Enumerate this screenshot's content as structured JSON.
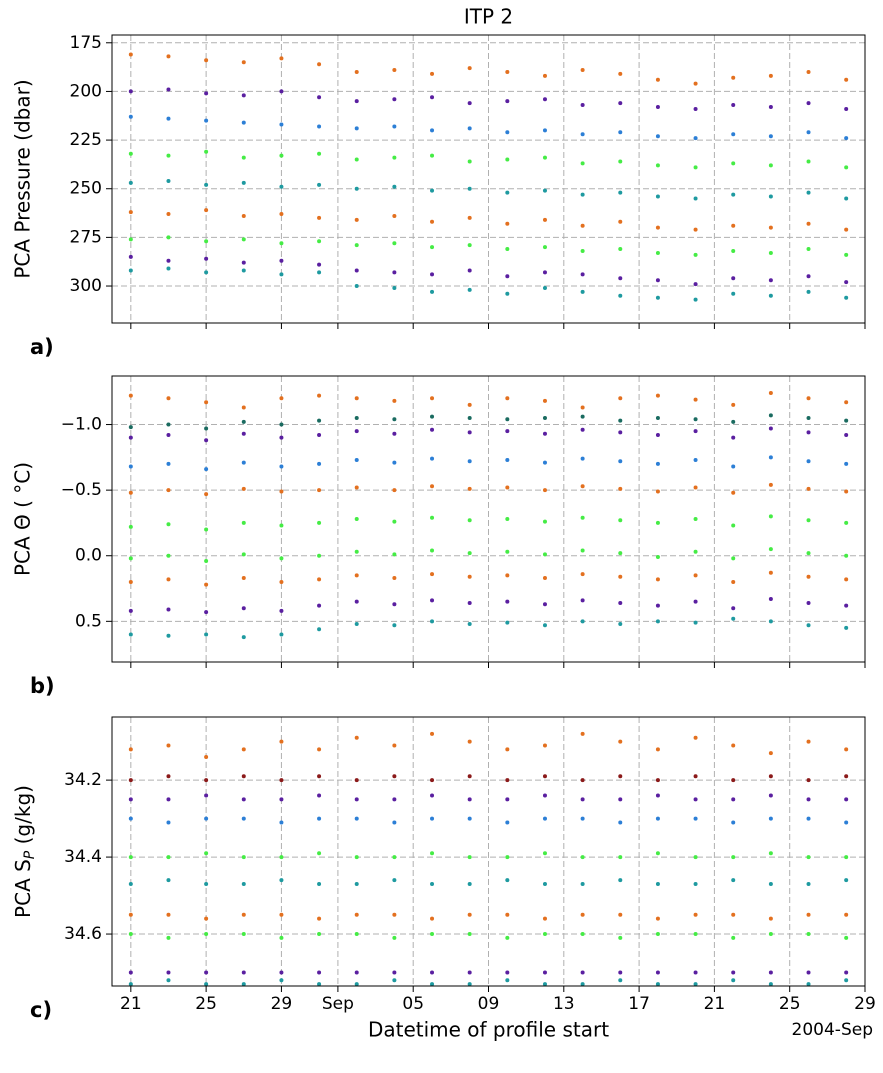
{
  "chart_data": [
    {
      "type": "scatter",
      "title": "ITP 2",
      "panel_label": "a)",
      "ylabel": "PCA Pressure (dbar)",
      "grid": true,
      "x": [
        "2004-08-21",
        "2004-08-23",
        "2004-08-25",
        "2004-08-27",
        "2004-08-29",
        "2004-08-31",
        "2004-09-02",
        "2004-09-04",
        "2004-09-06",
        "2004-09-08",
        "2004-09-10",
        "2004-09-12",
        "2004-09-14",
        "2004-09-16",
        "2004-09-18",
        "2004-09-20",
        "2004-09-22",
        "2004-09-24",
        "2004-09-26",
        "2004-09-28"
      ],
      "xlim": [
        "2004-08-20",
        "2004-09-29"
      ],
      "xticks": [
        "2004-08-21",
        "2004-08-25",
        "2004-08-29",
        "2004-09-01",
        "2004-09-05",
        "2004-09-09",
        "2004-09-13",
        "2004-09-17",
        "2004-09-21",
        "2004-09-25",
        "2004-09-29"
      ],
      "ylim": [
        319,
        171
      ],
      "yticks": [
        175,
        200,
        225,
        250,
        275,
        300
      ],
      "series": [
        {
          "color": "#e3701f",
          "values": [
            181,
            182,
            184,
            185,
            183,
            186,
            190,
            189,
            191,
            188,
            190,
            192,
            189,
            191,
            194,
            196,
            193,
            192,
            190,
            194
          ]
        },
        {
          "color": "#5a1fa0",
          "values": [
            200,
            199,
            201,
            202,
            200,
            203,
            205,
            204,
            203,
            206,
            205,
            204,
            207,
            206,
            208,
            209,
            207,
            208,
            206,
            209
          ]
        },
        {
          "color": "#2c7fd6",
          "values": [
            213,
            214,
            215,
            216,
            217,
            218,
            219,
            218,
            220,
            219,
            221,
            220,
            222,
            221,
            223,
            224,
            222,
            223,
            221,
            224
          ]
        },
        {
          "color": "#45ec45",
          "values": [
            232,
            233,
            231,
            234,
            233,
            232,
            235,
            234,
            233,
            236,
            235,
            234,
            237,
            236,
            238,
            239,
            237,
            238,
            236,
            239
          ]
        },
        {
          "color": "#1e9aa0",
          "values": [
            247,
            246,
            248,
            247,
            249,
            248,
            250,
            249,
            251,
            250,
            252,
            251,
            253,
            252,
            254,
            255,
            253,
            254,
            252,
            255
          ]
        },
        {
          "color": "#e3701f",
          "values": [
            262,
            263,
            261,
            264,
            263,
            265,
            266,
            264,
            267,
            265,
            268,
            266,
            269,
            267,
            270,
            271,
            269,
            270,
            268,
            271
          ]
        },
        {
          "color": "#45ec45",
          "values": [
            276,
            275,
            277,
            276,
            278,
            277,
            279,
            278,
            280,
            279,
            281,
            280,
            282,
            281,
            283,
            284,
            282,
            283,
            281,
            284
          ]
        },
        {
          "color": "#5a1fa0",
          "values": [
            285,
            287,
            286,
            288,
            287,
            289,
            292,
            293,
            294,
            292,
            295,
            293,
            294,
            296,
            297,
            299,
            296,
            297,
            295,
            298
          ]
        },
        {
          "color": "#1e9aa0",
          "values": [
            292,
            291,
            293,
            292,
            294,
            293,
            300,
            301,
            303,
            302,
            304,
            301,
            303,
            305,
            306,
            307,
            304,
            305,
            303,
            306
          ]
        }
      ]
    },
    {
      "type": "scatter",
      "panel_label": "b)",
      "ylabel": "PCA Θ ( °C)",
      "grid": true,
      "x": [
        "2004-08-21",
        "2004-08-23",
        "2004-08-25",
        "2004-08-27",
        "2004-08-29",
        "2004-08-31",
        "2004-09-02",
        "2004-09-04",
        "2004-09-06",
        "2004-09-08",
        "2004-09-10",
        "2004-09-12",
        "2004-09-14",
        "2004-09-16",
        "2004-09-18",
        "2004-09-20",
        "2004-09-22",
        "2004-09-24",
        "2004-09-26",
        "2004-09-28"
      ],
      "xlim": [
        "2004-08-20",
        "2004-09-29"
      ],
      "xticks": [
        "2004-08-21",
        "2004-08-25",
        "2004-08-29",
        "2004-09-01",
        "2004-09-05",
        "2004-09-09",
        "2004-09-13",
        "2004-09-17",
        "2004-09-21",
        "2004-09-25",
        "2004-09-29"
      ],
      "ylim": [
        0.81,
        -1.37
      ],
      "yticks": [
        {
          "value": -1.0,
          "label": "−1.0"
        },
        {
          "value": -0.5,
          "label": "−0.5"
        },
        {
          "value": 0.0,
          "label": "0.0"
        },
        0.5
      ],
      "series": [
        {
          "color": "#e3701f",
          "values": [
            -1.22,
            -1.2,
            -1.17,
            -1.13,
            -1.2,
            -1.22,
            -1.2,
            -1.18,
            -1.2,
            -1.15,
            -1.2,
            -1.18,
            -1.13,
            -1.2,
            -1.22,
            -1.19,
            -1.15,
            -1.24,
            -1.2,
            -1.17
          ]
        },
        {
          "color": "#1a6b60",
          "values": [
            -0.98,
            -1.0,
            -0.97,
            -1.02,
            -1.0,
            -1.03,
            -1.05,
            -1.04,
            -1.06,
            -1.05,
            -1.04,
            -1.05,
            -1.06,
            -1.03,
            -1.05,
            -1.04,
            -1.02,
            -1.07,
            -1.05,
            -1.03
          ]
        },
        {
          "color": "#5a1fa0",
          "values": [
            -0.9,
            -0.92,
            -0.88,
            -0.93,
            -0.9,
            -0.92,
            -0.95,
            -0.93,
            -0.96,
            -0.94,
            -0.95,
            -0.93,
            -0.96,
            -0.94,
            -0.92,
            -0.95,
            -0.9,
            -0.97,
            -0.94,
            -0.92
          ]
        },
        {
          "color": "#2c7fd6",
          "values": [
            -0.68,
            -0.7,
            -0.66,
            -0.71,
            -0.68,
            -0.7,
            -0.73,
            -0.71,
            -0.74,
            -0.72,
            -0.73,
            -0.71,
            -0.74,
            -0.72,
            -0.7,
            -0.73,
            -0.68,
            -0.75,
            -0.72,
            -0.7
          ]
        },
        {
          "color": "#e3701f",
          "values": [
            -0.48,
            -0.5,
            -0.47,
            -0.51,
            -0.49,
            -0.5,
            -0.52,
            -0.5,
            -0.53,
            -0.51,
            -0.52,
            -0.5,
            -0.53,
            -0.51,
            -0.49,
            -0.52,
            -0.48,
            -0.54,
            -0.51,
            -0.49
          ]
        },
        {
          "color": "#45ec45",
          "values": [
            -0.22,
            -0.24,
            -0.2,
            -0.25,
            -0.23,
            -0.25,
            -0.28,
            -0.26,
            -0.29,
            -0.27,
            -0.28,
            -0.26,
            -0.29,
            -0.27,
            -0.25,
            -0.28,
            -0.23,
            -0.3,
            -0.27,
            -0.25
          ]
        },
        {
          "color": "#45ec45",
          "values": [
            0.02,
            0,
            0.04,
            -0.01,
            0.02,
            0,
            -0.03,
            -0.01,
            -0.04,
            -0.02,
            -0.03,
            -0.01,
            -0.04,
            -0.02,
            0.01,
            -0.03,
            0.02,
            -0.05,
            -0.02,
            0
          ]
        },
        {
          "color": "#e3701f",
          "values": [
            0.2,
            0.18,
            0.22,
            0.17,
            0.2,
            0.18,
            0.15,
            0.17,
            0.14,
            0.16,
            0.15,
            0.17,
            0.14,
            0.16,
            0.18,
            0.15,
            0.2,
            0.13,
            0.16,
            0.18
          ]
        },
        {
          "color": "#5a1fa0",
          "values": [
            0.42,
            0.41,
            0.43,
            0.4,
            0.42,
            0.38,
            0.35,
            0.37,
            0.34,
            0.36,
            0.35,
            0.37,
            0.34,
            0.36,
            0.38,
            0.35,
            0.4,
            0.33,
            0.36,
            0.38
          ]
        },
        {
          "color": "#1e9aa0",
          "values": [
            0.6,
            0.61,
            0.6,
            0.62,
            0.6,
            0.56,
            0.52,
            0.53,
            0.5,
            0.52,
            0.51,
            0.53,
            0.5,
            0.52,
            0.5,
            0.51,
            0.48,
            0.5,
            0.53,
            0.55
          ]
        }
      ]
    },
    {
      "type": "scatter",
      "panel_label": "c)",
      "ylabel": [
        "PCA S",
        "P",
        " (g/kg)"
      ],
      "xlabel": "Datetime of profile start",
      "x_offset_label": "2004-Sep",
      "grid": true,
      "x": [
        "2004-08-21",
        "2004-08-23",
        "2004-08-25",
        "2004-08-27",
        "2004-08-29",
        "2004-08-31",
        "2004-09-02",
        "2004-09-04",
        "2004-09-06",
        "2004-09-08",
        "2004-09-10",
        "2004-09-12",
        "2004-09-14",
        "2004-09-16",
        "2004-09-18",
        "2004-09-20",
        "2004-09-22",
        "2004-09-24",
        "2004-09-26",
        "2004-09-28"
      ],
      "xlim": [
        "2004-08-20",
        "2004-09-29"
      ],
      "xticks": [
        {
          "value": "2004-08-21",
          "label": "21"
        },
        {
          "value": "2004-08-25",
          "label": "25"
        },
        {
          "value": "2004-08-29",
          "label": "29"
        },
        {
          "value": "2004-09-01",
          "label": "Sep"
        },
        {
          "value": "2004-09-05",
          "label": "05"
        },
        {
          "value": "2004-09-09",
          "label": "09"
        },
        {
          "value": "2004-09-13",
          "label": "13"
        },
        {
          "value": "2004-09-17",
          "label": "17"
        },
        {
          "value": "2004-09-21",
          "label": "21"
        },
        {
          "value": "2004-09-25",
          "label": "25"
        },
        {
          "value": "2004-09-29",
          "label": "29"
        }
      ],
      "ylim": [
        34.735,
        34.036
      ],
      "yticks": [
        34.2,
        34.4,
        34.6
      ],
      "series": [
        {
          "color": "#e3701f",
          "values": [
            34.12,
            34.11,
            34.14,
            34.12,
            34.1,
            34.12,
            34.09,
            34.11,
            34.08,
            34.1,
            34.12,
            34.11,
            34.08,
            34.1,
            34.12,
            34.09,
            34.11,
            34.13,
            34.1,
            34.12
          ]
        },
        {
          "color": "#8b1a1a",
          "values": [
            34.2,
            34.19,
            34.2,
            34.19,
            34.2,
            34.19,
            34.2,
            34.19,
            34.2,
            34.19,
            34.2,
            34.19,
            34.2,
            34.19,
            34.2,
            34.19,
            34.2,
            34.19,
            34.2,
            34.19
          ]
        },
        {
          "color": "#5a1fa0",
          "values": [
            34.25,
            34.25,
            34.24,
            34.25,
            34.25,
            34.24,
            34.25,
            34.25,
            34.24,
            34.25,
            34.25,
            34.24,
            34.25,
            34.25,
            34.24,
            34.25,
            34.25,
            34.24,
            34.25,
            34.25
          ]
        },
        {
          "color": "#2c7fd6",
          "values": [
            34.3,
            34.31,
            34.3,
            34.3,
            34.31,
            34.3,
            34.3,
            34.31,
            34.3,
            34.3,
            34.31,
            34.3,
            34.3,
            34.31,
            34.3,
            34.3,
            34.31,
            34.3,
            34.3,
            34.31
          ]
        },
        {
          "color": "#45ec45",
          "values": [
            34.4,
            34.4,
            34.39,
            34.4,
            34.4,
            34.39,
            34.4,
            34.4,
            34.39,
            34.4,
            34.4,
            34.39,
            34.4,
            34.4,
            34.39,
            34.4,
            34.4,
            34.39,
            34.4,
            34.4
          ]
        },
        {
          "color": "#1e9aa0",
          "values": [
            34.47,
            34.46,
            34.47,
            34.47,
            34.46,
            34.47,
            34.47,
            34.46,
            34.47,
            34.47,
            34.46,
            34.47,
            34.47,
            34.46,
            34.47,
            34.47,
            34.46,
            34.47,
            34.47,
            34.46
          ]
        },
        {
          "color": "#e3701f",
          "values": [
            34.55,
            34.55,
            34.56,
            34.55,
            34.55,
            34.56,
            34.55,
            34.55,
            34.56,
            34.55,
            34.55,
            34.56,
            34.55,
            34.55,
            34.56,
            34.55,
            34.55,
            34.56,
            34.55,
            34.55
          ]
        },
        {
          "color": "#45ec45",
          "values": [
            34.6,
            34.61,
            34.6,
            34.6,
            34.61,
            34.6,
            34.6,
            34.61,
            34.6,
            34.6,
            34.61,
            34.6,
            34.6,
            34.61,
            34.6,
            34.6,
            34.61,
            34.6,
            34.6,
            34.61
          ]
        },
        {
          "color": "#5a1fa0",
          "values": [
            34.7,
            34.7,
            34.7,
            34.7,
            34.7,
            34.7,
            34.7,
            34.7,
            34.7,
            34.7,
            34.7,
            34.7,
            34.7,
            34.7,
            34.7,
            34.7,
            34.7,
            34.7,
            34.7,
            34.7
          ]
        },
        {
          "color": "#1e9aa0",
          "values": [
            34.73,
            34.72,
            34.73,
            34.73,
            34.72,
            34.73,
            34.73,
            34.72,
            34.73,
            34.73,
            34.72,
            34.73,
            34.73,
            34.72,
            34.73,
            34.73,
            34.72,
            34.73,
            34.73,
            34.72
          ]
        }
      ]
    }
  ]
}
